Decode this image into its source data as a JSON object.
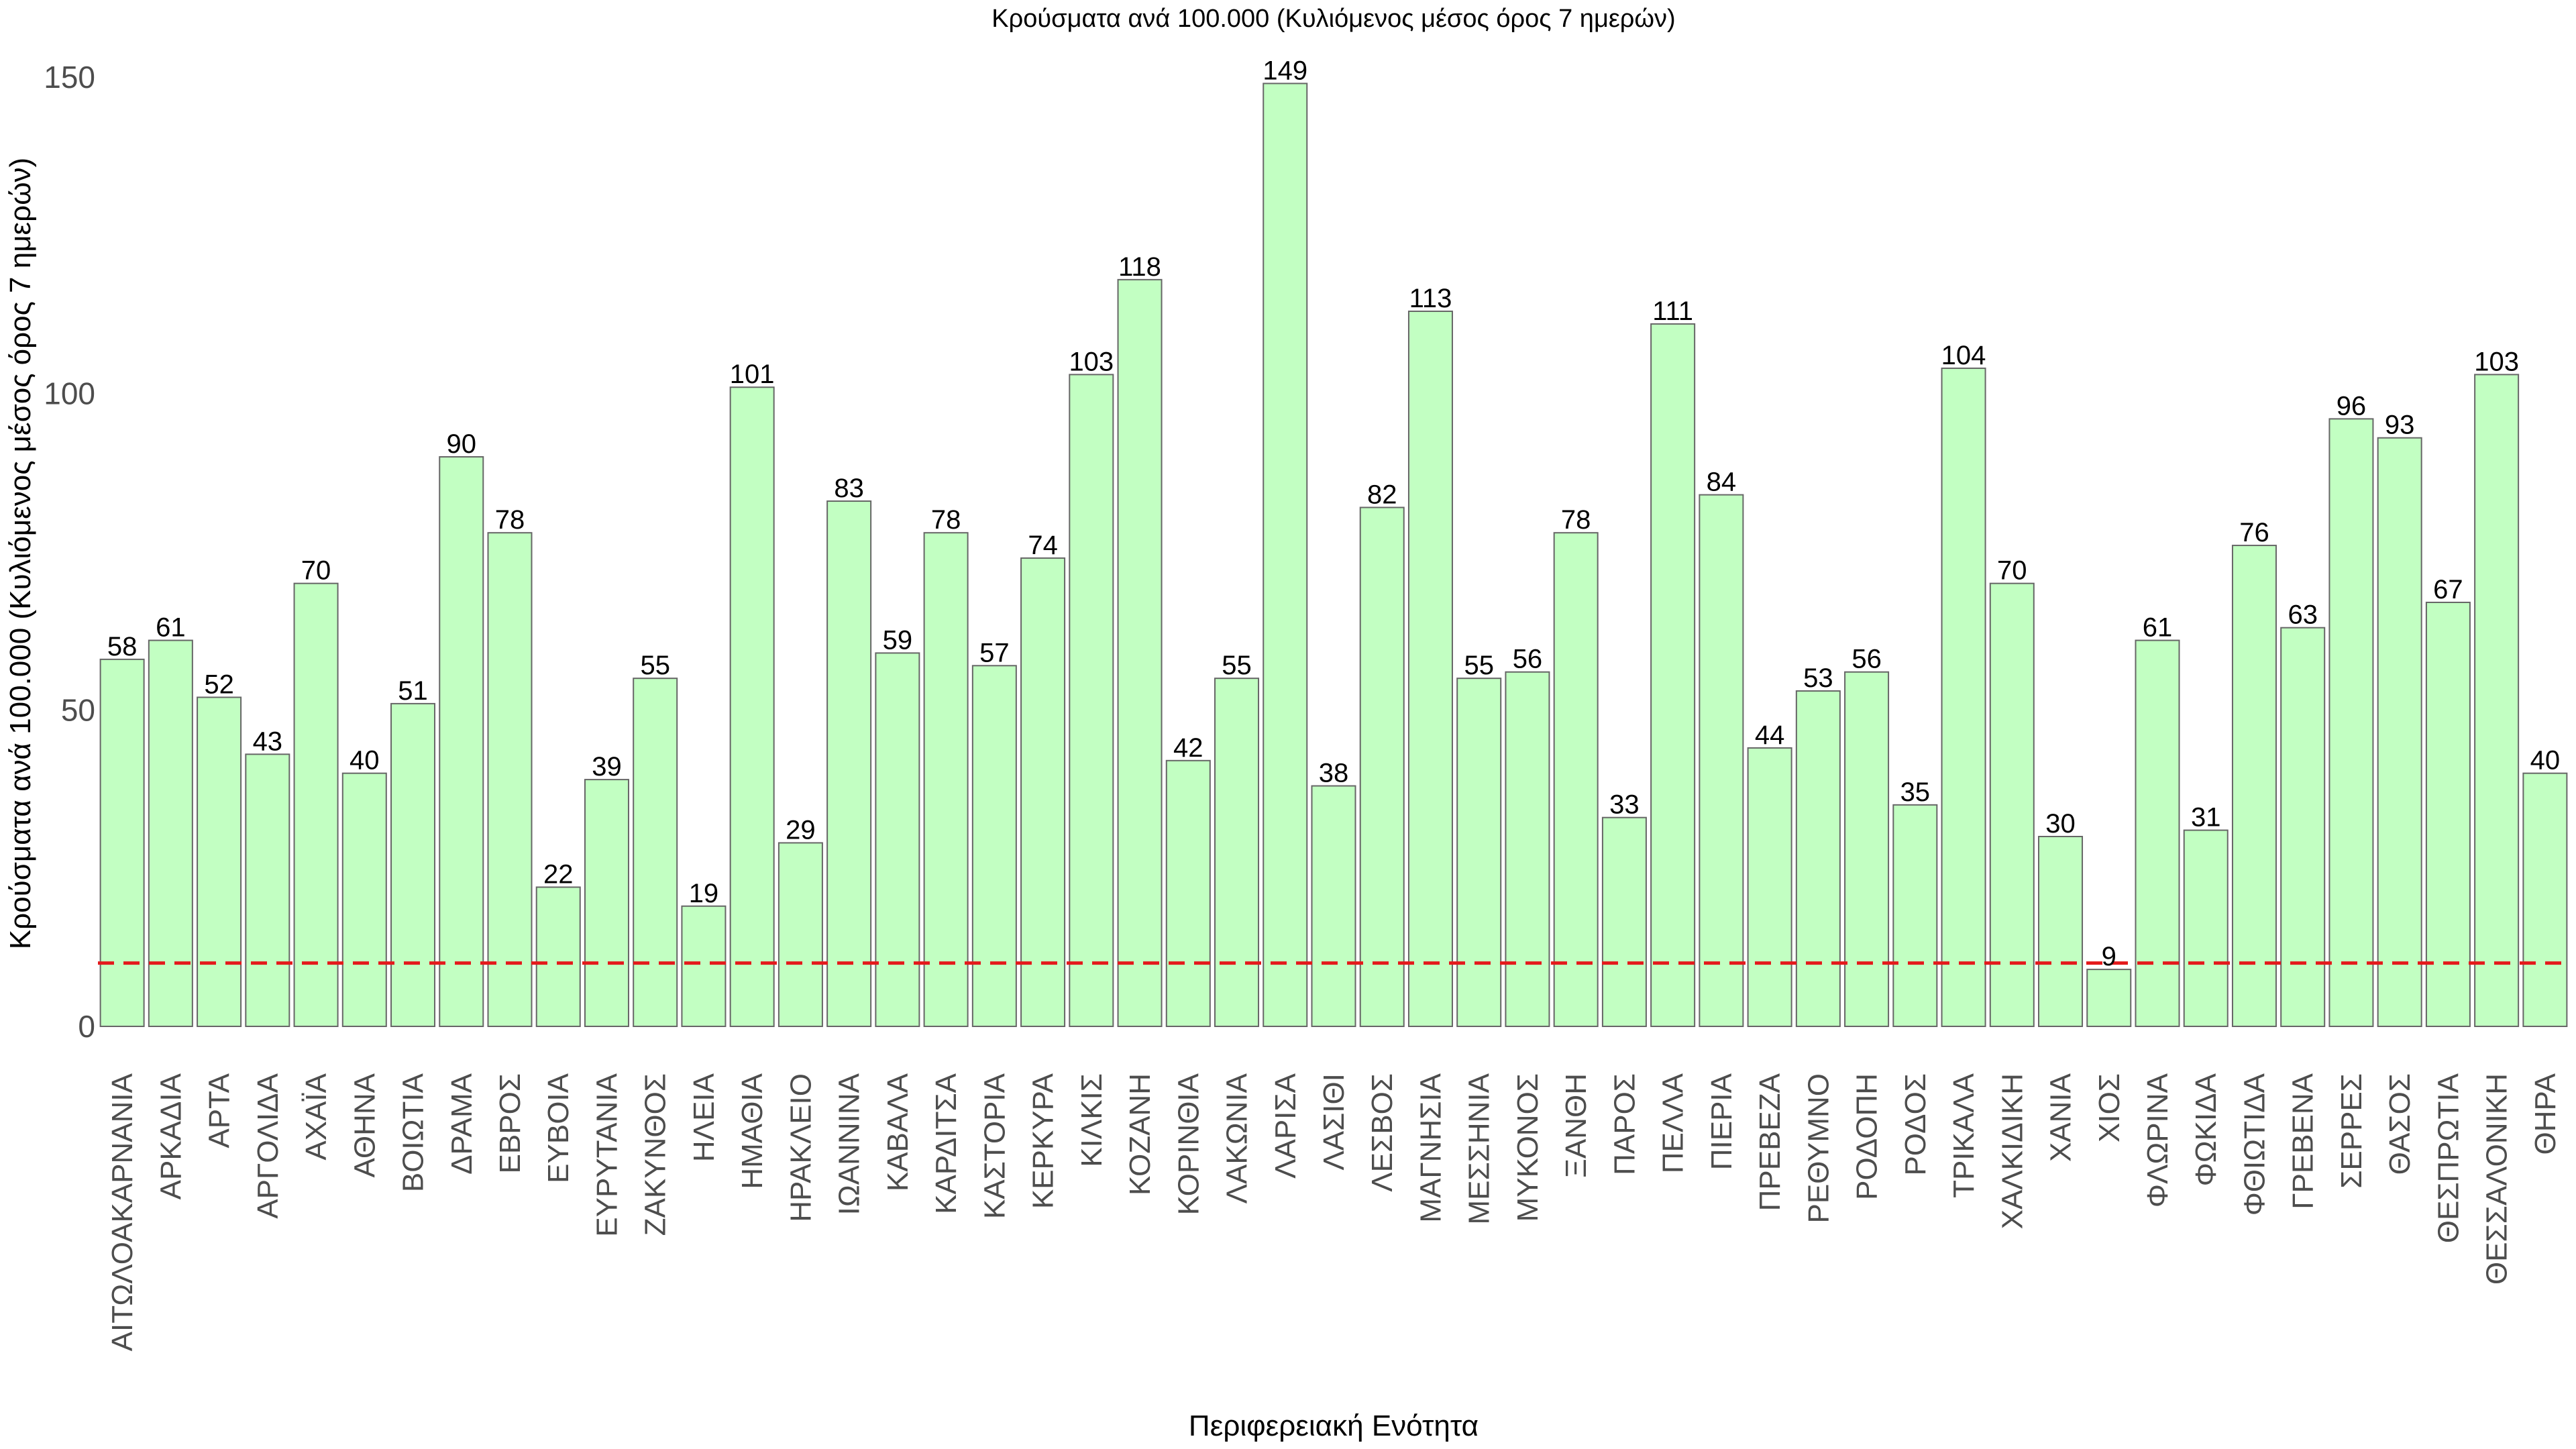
{
  "chart_data": {
    "type": "bar",
    "title": "Κρούσματα ανά 100.000 (Κυλιόμενος μέσος όρος 7 ημερών)",
    "xlabel": "Περιφερειακή Ενότητα",
    "ylabel": "Κρούσματα ανά 100.000 (Κυλιόμενος μέσος όρος 7 ημερών)",
    "ylim": [
      0,
      150
    ],
    "yticks": [
      "0",
      "50",
      "100",
      "150"
    ],
    "grid": false,
    "reference_line": {
      "value": 10,
      "style": "dashed",
      "color": "#e41a1c"
    },
    "bar_color": "#c2ffc2",
    "bar_edge_color": "#666666",
    "categories": [
      "ΑΙΤΩΛΟΑΚΑΡΝΑΝΙΑ",
      "ΑΡΚΑΔΙΑ",
      "ΑΡΤΑ",
      "ΑΡΓΟΛΙΔΑ",
      "ΑΧΑΪΑ",
      "ΑΘΗΝΑ",
      "ΒΟΙΩΤΙΑ",
      "ΔΡΑΜΑ",
      "ΕΒΡΟΣ",
      "ΕΥΒΟΙΑ",
      "ΕΥΡΥΤΑΝΙΑ",
      "ΖΑΚΥΝΘΟΣ",
      "ΗΛΕΙΑ",
      "ΗΜΑΘΙΑ",
      "ΗΡΑΚΛΕΙΟ",
      "ΙΩΑΝΝΙΝΑ",
      "ΚΑΒΑΛΑ",
      "ΚΑΡΔΙΤΣΑ",
      "ΚΑΣΤΟΡΙΑ",
      "ΚΕΡΚΥΡΑ",
      "ΚΙΛΚΙΣ",
      "ΚΟΖΑΝΗ",
      "ΚΟΡΙΝΘΙΑ",
      "ΛΑΚΩΝΙΑ",
      "ΛΑΡΙΣΑ",
      "ΛΑΣΙΘΙ",
      "ΛΕΣΒΟΣ",
      "ΜΑΓΝΗΣΙΑ",
      "ΜΕΣΣΗΝΙΑ",
      "ΜΥΚΟΝΟΣ",
      "ΞΑΝΘΗ",
      "ΠΑΡΟΣ",
      "ΠΕΛΛΑ",
      "ΠΙΕΡΙΑ",
      "ΠΡΕΒΕΖΑ",
      "ΡΕΘΥΜΝΟ",
      "ΡΟΔΟΠΗ",
      "ΡΟΔΟΣ",
      "ΤΡΙΚΑΛΑ",
      "ΧΑΛΚΙΔΙΚΗ",
      "ΧΑΝΙΑ",
      "ΧΙΟΣ",
      "ΦΛΩΡΙΝΑ",
      "ΦΩΚΙΔΑ",
      "ΦΘΙΩΤΙΔΑ",
      "ΓΡΕΒΕΝΑ",
      "ΣΕΡΡΕΣ",
      "ΘΑΣΟΣ",
      "ΘΕΣΠΡΩΤΙΑ",
      "ΘΕΣΣΑΛΟΝΙΚΗ",
      "ΘΗΡΑ"
    ],
    "values": [
      58,
      61,
      52,
      43,
      70,
      40,
      51,
      90,
      78,
      22,
      39,
      55,
      19,
      101,
      29,
      83,
      59,
      78,
      57,
      74,
      103,
      118,
      42,
      55,
      149,
      38,
      82,
      113,
      55,
      56,
      78,
      33,
      111,
      84,
      44,
      53,
      56,
      35,
      104,
      70,
      30,
      9,
      61,
      31,
      76,
      63,
      96,
      93,
      67,
      103,
      40
    ]
  }
}
